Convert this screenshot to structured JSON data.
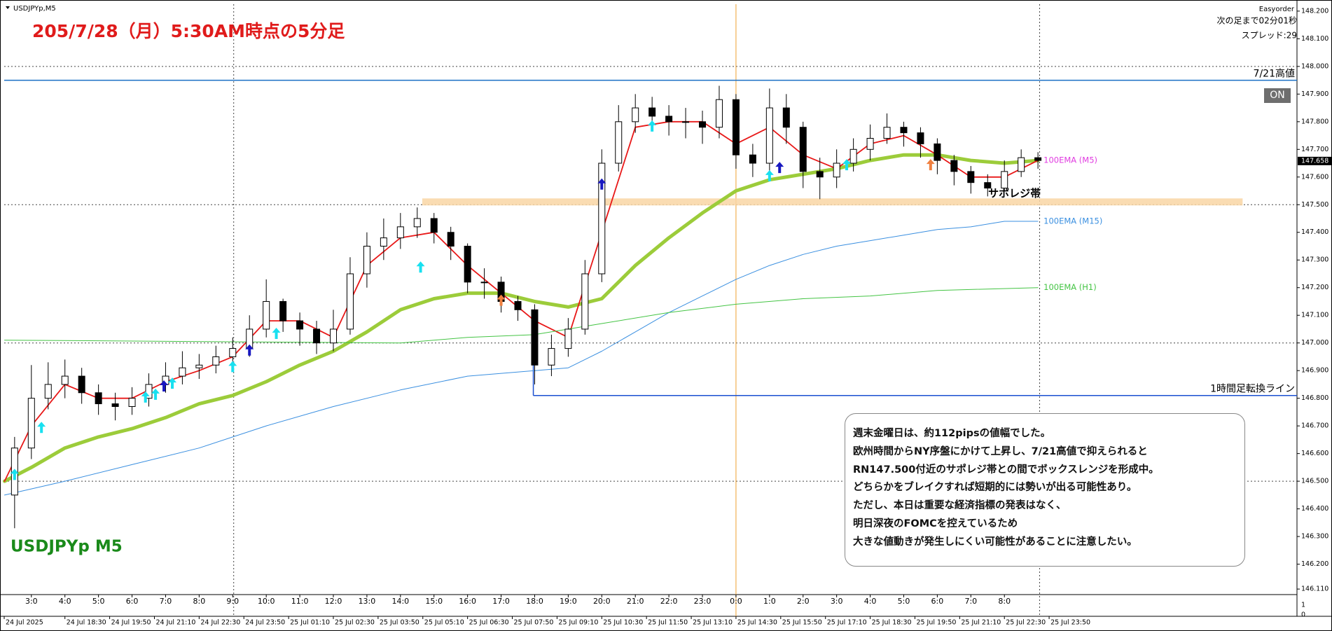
{
  "chart_data": {
    "type": "candlestick",
    "title": "205/7/28（月）5:30AM時点の5分足",
    "symbol_label": "USDJPYp,M5",
    "watermark": "USDJPYp M5",
    "x": [
      0.5,
      1,
      1.5,
      2,
      2.5,
      3,
      3.5,
      4,
      4.5,
      5,
      5.5,
      6,
      6.5,
      7,
      7.5,
      8,
      8.5,
      9,
      9.5,
      10,
      10.5,
      11,
      11.5,
      12,
      12.5,
      13,
      13.5,
      14,
      14.5,
      15,
      15.5,
      16,
      16.5,
      17,
      17.5,
      18,
      18.5,
      19,
      19.5,
      20,
      20.5,
      21,
      21.5,
      22,
      22.5,
      23,
      23.5,
      24,
      24.5,
      25,
      25.5,
      26,
      26.5,
      27,
      27.5,
      28,
      28.5,
      29,
      29.5,
      30,
      30.5,
      31
    ],
    "open": [
      146.45,
      146.62,
      146.8,
      146.85,
      146.88,
      146.82,
      146.78,
      146.77,
      146.8,
      146.85,
      146.88,
      146.91,
      146.92,
      146.95,
      146.98,
      147.05,
      147.15,
      147.08,
      147.05,
      147.0,
      147.05,
      147.25,
      147.35,
      147.38,
      147.42,
      147.45,
      147.4,
      147.35,
      147.22,
      147.22,
      147.15,
      147.12,
      146.92,
      146.98,
      147.05,
      147.25,
      147.65,
      147.8,
      147.85,
      147.82,
      147.8,
      147.8,
      147.78,
      147.88,
      147.68,
      147.65,
      147.85,
      147.78,
      147.62,
      147.6,
      147.65,
      147.7,
      147.74,
      147.78,
      147.76,
      147.72,
      147.66,
      147.62,
      147.58,
      147.56,
      147.62,
      147.67
    ],
    "high": [
      146.66,
      146.92,
      146.93,
      146.94,
      146.91,
      146.85,
      146.82,
      146.84,
      146.89,
      146.93,
      146.97,
      146.96,
      146.99,
      147.02,
      147.1,
      147.23,
      147.16,
      147.11,
      147.08,
      147.12,
      147.31,
      147.4,
      147.45,
      147.47,
      147.49,
      147.47,
      147.42,
      147.36,
      147.27,
      147.24,
      147.17,
      147.14,
      147.03,
      147.09,
      147.3,
      147.7,
      147.86,
      147.9,
      147.89,
      147.86,
      147.85,
      147.84,
      147.93,
      147.9,
      147.72,
      147.92,
      147.9,
      147.8,
      147.67,
      147.7,
      147.74,
      147.79,
      147.83,
      147.8,
      147.78,
      147.74,
      147.68,
      147.64,
      147.61,
      147.66,
      147.7,
      147.69
    ],
    "low": [
      146.33,
      146.58,
      146.76,
      146.8,
      146.78,
      146.74,
      146.72,
      146.74,
      146.77,
      146.82,
      146.85,
      146.87,
      146.89,
      146.92,
      146.95,
      147.02,
      147.04,
      146.99,
      146.96,
      146.97,
      147.03,
      147.2,
      147.3,
      147.34,
      147.38,
      147.36,
      147.3,
      147.18,
      147.16,
      147.11,
      147.08,
      146.85,
      146.88,
      146.95,
      147.03,
      147.22,
      147.62,
      147.76,
      147.77,
      147.75,
      147.74,
      147.72,
      147.74,
      147.63,
      147.6,
      147.62,
      147.72,
      147.56,
      147.52,
      147.56,
      147.62,
      147.66,
      147.72,
      147.71,
      147.67,
      147.61,
      147.57,
      147.54,
      147.53,
      147.55,
      147.6,
      147.63
    ],
    "close": [
      146.62,
      146.8,
      146.85,
      146.88,
      146.82,
      146.78,
      146.77,
      146.8,
      146.85,
      146.88,
      146.91,
      146.92,
      146.95,
      146.98,
      147.05,
      147.15,
      147.08,
      147.05,
      147.0,
      147.05,
      147.25,
      147.35,
      147.38,
      147.42,
      147.45,
      147.4,
      147.35,
      147.22,
      147.22,
      147.15,
      147.12,
      146.92,
      146.98,
      147.05,
      147.25,
      147.65,
      147.8,
      147.85,
      147.82,
      147.8,
      147.8,
      147.78,
      147.88,
      147.68,
      147.65,
      147.85,
      147.78,
      147.62,
      147.6,
      147.65,
      147.7,
      147.74,
      147.78,
      147.76,
      147.72,
      147.66,
      147.62,
      147.58,
      147.56,
      147.62,
      147.67,
      147.66
    ],
    "candle_color": "#000000",
    "xlim": [
      0.19,
      38.72
    ],
    "ylim": [
      146.09,
      148.225
    ],
    "yticks": [
      {
        "value": 146.11,
        "label": "146.110"
      },
      {
        "value": 146.2,
        "label": "146.200"
      },
      {
        "value": 146.3,
        "label": "146.300"
      },
      {
        "value": 146.4,
        "label": "146.400"
      },
      {
        "value": 146.5,
        "label": "146.500"
      },
      {
        "value": 146.6,
        "label": "146.600"
      },
      {
        "value": 146.7,
        "label": "146.700"
      },
      {
        "value": 146.8,
        "label": "146.800"
      },
      {
        "value": 146.9,
        "label": "146.900"
      },
      {
        "value": 147.0,
        "label": "147.000"
      },
      {
        "value": 147.1,
        "label": "147.100"
      },
      {
        "value": 147.2,
        "label": "147.200"
      },
      {
        "value": 147.3,
        "label": "147.300"
      },
      {
        "value": 147.4,
        "label": "147.400"
      },
      {
        "value": 147.5,
        "label": "147.500"
      },
      {
        "value": 147.6,
        "label": "147.600"
      },
      {
        "value": 147.7,
        "label": "147.700"
      },
      {
        "value": 147.8,
        "label": "147.800"
      },
      {
        "value": 147.9,
        "label": "147.900"
      },
      {
        "value": 148.0,
        "label": "148.000"
      },
      {
        "value": 148.1,
        "label": "148.100"
      },
      {
        "value": 148.2,
        "label": "148.200"
      }
    ],
    "xticks": [
      {
        "value": 1,
        "label": "3:0"
      },
      {
        "value": 2,
        "label": "4:0"
      },
      {
        "value": 3,
        "label": "5:0"
      },
      {
        "value": 4,
        "label": "6:0"
      },
      {
        "value": 5,
        "label": "7:0"
      },
      {
        "value": 6,
        "label": "8:0"
      },
      {
        "value": 7,
        "label": "9:0"
      },
      {
        "value": 8,
        "label": "10:0"
      },
      {
        "value": 9,
        "label": "11:0"
      },
      {
        "value": 10,
        "label": "12:0"
      },
      {
        "value": 11,
        "label": "13:0"
      },
      {
        "value": 12,
        "label": "14:0"
      },
      {
        "value": 13,
        "label": "15:0"
      },
      {
        "value": 14,
        "label": "16:0"
      },
      {
        "value": 15,
        "label": "17:0"
      },
      {
        "value": 16,
        "label": "18:0"
      },
      {
        "value": 17,
        "label": "19:0"
      },
      {
        "value": 18,
        "label": "20:0"
      },
      {
        "value": 19,
        "label": "21:0"
      },
      {
        "value": 20,
        "label": "22:0"
      },
      {
        "value": 21,
        "label": "23:0"
      },
      {
        "value": 22,
        "label": "0:0"
      },
      {
        "value": 23,
        "label": "1:0"
      },
      {
        "value": 24,
        "label": "2:0"
      },
      {
        "value": 25,
        "label": "3:0"
      },
      {
        "value": 26,
        "label": "4:0"
      },
      {
        "value": 27,
        "label": "5:0"
      },
      {
        "value": 28,
        "label": "6:0"
      },
      {
        "value": 29,
        "label": "7:0"
      },
      {
        "value": 30,
        "label": "8:0"
      }
    ],
    "date_ticks": [
      {
        "value": 0.19,
        "label": "24 Jul 2025"
      },
      {
        "value": 2,
        "label": "24 Jul 18:30"
      },
      {
        "value": 3.333,
        "label": "24 Jul 19:50"
      },
      {
        "value": 4.667,
        "label": "24 Jul 21:10"
      },
      {
        "value": 6,
        "label": "24 Jul 22:30"
      },
      {
        "value": 7.333,
        "label": "24 Jul 23:50"
      },
      {
        "value": 8.667,
        "label": "25 Jul 01:10"
      },
      {
        "value": 10,
        "label": "25 Jul 02:30"
      },
      {
        "value": 11.333,
        "label": "25 Jul 03:50"
      },
      {
        "value": 12.667,
        "label": "25 Jul 05:10"
      },
      {
        "value": 14,
        "label": "25 Jul 06:30"
      },
      {
        "value": 15.333,
        "label": "25 Jul 07:50"
      },
      {
        "value": 16.667,
        "label": "25 Jul 09:10"
      },
      {
        "value": 18,
        "label": "25 Jul 10:30"
      },
      {
        "value": 19.333,
        "label": "25 Jul 11:50"
      },
      {
        "value": 20.667,
        "label": "25 Jul 13:10"
      },
      {
        "value": 22,
        "label": "25 Jul 14:30"
      },
      {
        "value": 23.333,
        "label": "25 Jul 15:50"
      },
      {
        "value": 24.667,
        "label": "25 Jul 17:10"
      },
      {
        "value": 26,
        "label": "25 Jul 18:30"
      },
      {
        "value": 27.333,
        "label": "25 Jul 19:50"
      },
      {
        "value": 28.667,
        "label": "25 Jul 21:10"
      },
      {
        "value": 30,
        "label": "25 Jul 22:30"
      },
      {
        "value": 31.333,
        "label": "25 Jul 23:50"
      }
    ],
    "hgrid": [
      146.5,
      147.0,
      147.5,
      148.0
    ],
    "vgrid": [
      7.03,
      31.05
    ],
    "session_line": {
      "value": 22,
      "color": "#f0a030"
    },
    "current_price": 147.658,
    "subwindow_ticks": [
      1,
      0
    ],
    "lines": [
      {
        "name": "100EMA (M5)",
        "color": "#9ccc3a",
        "label_color": "#e03ce0",
        "width": 5,
        "x": [
          0.2,
          1,
          2,
          3,
          4,
          5,
          6,
          7,
          8,
          9,
          10,
          11,
          12,
          13,
          14,
          15,
          16,
          17,
          18,
          19,
          20,
          21,
          22,
          23,
          24,
          25,
          26,
          27,
          28,
          29,
          30,
          31
        ],
        "values": [
          146.5,
          146.55,
          146.62,
          146.66,
          146.69,
          146.73,
          146.78,
          146.81,
          146.86,
          146.92,
          146.97,
          147.04,
          147.12,
          147.16,
          147.18,
          147.18,
          147.15,
          147.13,
          147.16,
          147.28,
          147.38,
          147.47,
          147.55,
          147.59,
          147.61,
          147.63,
          147.66,
          147.68,
          147.68,
          147.66,
          147.65,
          147.66
        ]
      },
      {
        "color": "#e81818",
        "width": 1.8,
        "x": [
          0.2,
          1,
          2,
          3,
          4,
          5,
          6,
          7,
          8,
          9,
          10,
          11,
          12,
          13,
          14,
          15,
          16,
          17,
          18,
          19,
          20,
          21,
          22,
          23,
          24,
          25,
          26,
          27,
          28,
          29,
          30,
          31
        ],
        "values": [
          146.5,
          146.7,
          146.85,
          146.8,
          146.8,
          146.86,
          146.9,
          146.95,
          147.08,
          147.08,
          147.02,
          147.28,
          147.38,
          147.4,
          147.28,
          147.18,
          147.08,
          147.02,
          147.4,
          147.78,
          147.8,
          147.8,
          147.72,
          147.78,
          147.68,
          147.63,
          147.72,
          147.75,
          147.68,
          147.6,
          147.6,
          147.66
        ]
      },
      {
        "name": "100EMA (M15)",
        "color": "#3a8fe0",
        "label_color": "#3a8fe0",
        "width": 1,
        "x": [
          0.2,
          2,
          4,
          6,
          8,
          10,
          12,
          14,
          16,
          17,
          18,
          19,
          20,
          21,
          22,
          23,
          24,
          25,
          26,
          27,
          28,
          29,
          30,
          31
        ],
        "values": [
          146.45,
          146.5,
          146.56,
          146.62,
          146.7,
          146.77,
          146.83,
          146.88,
          146.9,
          146.91,
          146.97,
          147.04,
          147.11,
          147.17,
          147.23,
          147.28,
          147.32,
          147.35,
          147.37,
          147.39,
          147.41,
          147.42,
          147.44,
          147.44
        ]
      },
      {
        "name": "100EMA (H1)",
        "color": "#44c444",
        "label_color": "#44c444",
        "width": 1,
        "x": [
          0.2,
          12,
          14,
          16,
          18,
          20,
          22,
          24,
          26,
          28,
          31
        ],
        "values": [
          147.01,
          147.0,
          147.02,
          147.03,
          147.07,
          147.11,
          147.14,
          147.16,
          147.17,
          147.19,
          147.2
        ]
      }
    ],
    "levels": [
      {
        "label": "7/21高値",
        "value": 147.95,
        "from": 0.19,
        "color": "#1a6fc4"
      },
      {
        "label": "1時間足転換ライン",
        "value": 146.81,
        "from": 15.96,
        "color": "#1a4fd0"
      }
    ],
    "zones": [
      {
        "label": "サポレジ帯",
        "value": 147.51,
        "from": 12.65,
        "to": 37.1,
        "color": "#f9d6a5"
      }
    ],
    "signals": [
      {
        "x": 0.5,
        "value": 146.55,
        "color": "#18e0f0"
      },
      {
        "x": 1.3,
        "value": 146.72,
        "color": "#18e0f0"
      },
      {
        "x": 4.4,
        "value": 146.83,
        "color": "#18e0f0"
      },
      {
        "x": 4.7,
        "value": 146.84,
        "color": "#18e0f0"
      },
      {
        "x": 5.2,
        "value": 146.88,
        "color": "#18e0f0"
      },
      {
        "x": 7.0,
        "value": 146.94,
        "color": "#18e0f0"
      },
      {
        "x": 8.3,
        "value": 147.06,
        "color": "#18e0f0"
      },
      {
        "x": 12.6,
        "value": 147.3,
        "color": "#18e0f0"
      },
      {
        "x": 19.5,
        "value": 147.81,
        "color": "#18e0f0"
      },
      {
        "x": 25.3,
        "value": 147.67,
        "color": "#18e0f0"
      },
      {
        "x": 23.0,
        "value": 147.63,
        "color": "#18e0f0"
      },
      {
        "x": 4.95,
        "value": 146.87,
        "color": "#1818c0"
      },
      {
        "x": 7.5,
        "value": 147.0,
        "color": "#1818c0"
      },
      {
        "x": 18.0,
        "value": 147.6,
        "color": "#1818c0"
      },
      {
        "x": 23.3,
        "value": 147.66,
        "color": "#1818c0"
      },
      {
        "x": 15.0,
        "value": 147.18,
        "color": "#f08040"
      },
      {
        "x": 27.8,
        "value": 147.67,
        "color": "#f08040"
      }
    ]
  },
  "info": {
    "broker": "Easyorder",
    "next_bar": "次の足まで02分01秒",
    "spread": "スプレッド:29"
  },
  "button": "ON",
  "note": {
    "lines": [
      "週末金曜日は、約112pipsの値幅でした。",
      "欧州時間からNY序盤にかけて上昇し、7/21高値で抑えられると",
      "RN147.500付近のサポレジ帯との間でボックスレンジを形成中。",
      "どちらかをブレイクすれば短期的には勢いが出る可能性あり。",
      "ただし、本日は重要な経済指標の発表はなく、",
      "明日深夜のFOMCを控えているため",
      "大きな値動きが発生しにくい可能性があることに注意したい。"
    ]
  }
}
